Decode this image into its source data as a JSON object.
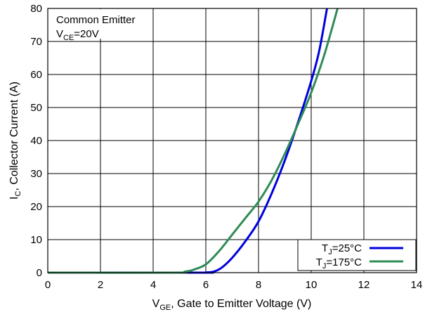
{
  "chart_data": {
    "type": "line",
    "xlabel": {
      "main": "V",
      "sub": "GE",
      "rest": ", Gate to Emitter Voltage (V)"
    },
    "ylabel": {
      "main": "I",
      "sub": "C",
      "rest": ", Collector Current (A)"
    },
    "xlim": [
      0,
      14
    ],
    "ylim": [
      0,
      80
    ],
    "x_ticks": [
      "0",
      "2",
      "4",
      "6",
      "8",
      "10",
      "12",
      "14"
    ],
    "y_ticks": [
      "0",
      "10",
      "20",
      "30",
      "40",
      "50",
      "60",
      "70",
      "80"
    ],
    "grid": true,
    "legend_position": "bottom-right",
    "annotations": {
      "line1": "Common Emitter",
      "line2_main": "V",
      "line2_sub": "CE",
      "line2_rest": "=20V"
    },
    "series": [
      {
        "name": {
          "main": "T",
          "sub": "J",
          "rest": "=25°C"
        },
        "color": "#0000e0",
        "points": [
          [
            0,
            0
          ],
          [
            5.8,
            0
          ],
          [
            6.0,
            0.05
          ],
          [
            6.3,
            0.3
          ],
          [
            6.6,
            1.5
          ],
          [
            7.0,
            4.5
          ],
          [
            7.5,
            9.5
          ],
          [
            8.0,
            15.5
          ],
          [
            8.5,
            24
          ],
          [
            9.0,
            34
          ],
          [
            9.5,
            45.5
          ],
          [
            10.0,
            58
          ],
          [
            10.3,
            67
          ],
          [
            10.6,
            80
          ]
        ]
      },
      {
        "name": {
          "main": "T",
          "sub": "J",
          "rest": "=175°C"
        },
        "color": "#2e8b57",
        "points": [
          [
            0,
            0
          ],
          [
            4.8,
            0
          ],
          [
            5.2,
            0.3
          ],
          [
            5.5,
            0.8
          ],
          [
            6.0,
            2.5
          ],
          [
            6.5,
            6.5
          ],
          [
            7.0,
            11.5
          ],
          [
            7.5,
            16.5
          ],
          [
            8.0,
            21.5
          ],
          [
            8.5,
            28
          ],
          [
            9.0,
            36
          ],
          [
            9.5,
            45
          ],
          [
            10.0,
            54.5
          ],
          [
            10.5,
            66
          ],
          [
            11.0,
            80
          ]
        ]
      }
    ]
  }
}
